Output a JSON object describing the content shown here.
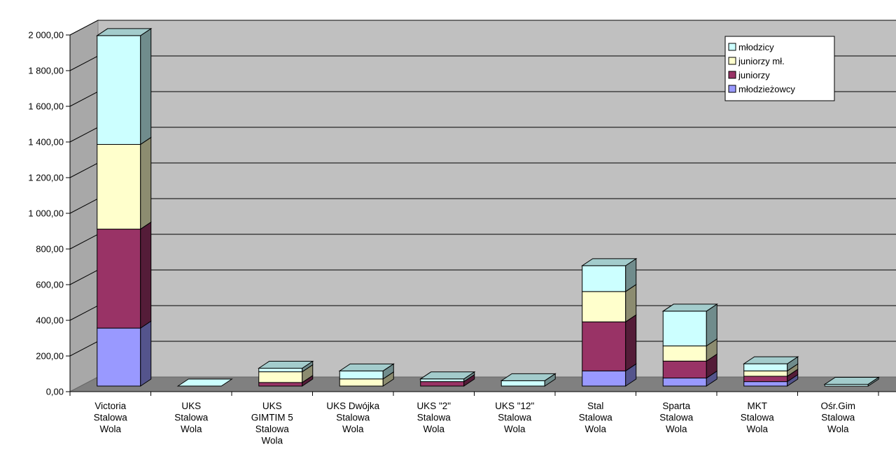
{
  "chart_data": {
    "type": "bar",
    "stacked": true,
    "three_d": true,
    "title": "",
    "xlabel": "",
    "ylabel": "",
    "ylim": [
      0,
      2000
    ],
    "yticks": [
      0,
      200,
      400,
      600,
      800,
      1000,
      1200,
      1400,
      1600,
      1800,
      2000
    ],
    "ytick_labels": [
      "0,00",
      "200,00",
      "400,00",
      "600,00",
      "800,00",
      "1 000,00",
      "1 200,00",
      "1 400,00",
      "1 600,00",
      "1 800,00",
      "2 000,00"
    ],
    "grid": true,
    "legend_position": "top-right",
    "categories": [
      [
        "Victoria",
        "Stalowa",
        "Wola"
      ],
      [
        "UKS",
        "Stalowa",
        "Wola"
      ],
      [
        "UKS",
        "GIMTIM 5",
        "Stalowa",
        "Wola"
      ],
      [
        "UKS Dwójka",
        "Stalowa",
        "Wola"
      ],
      [
        "UKS \"2\"",
        "Stalowa",
        "Wola"
      ],
      [
        "UKS \"12\"",
        "Stalowa",
        "Wola"
      ],
      [
        "Stal",
        "Stalowa",
        "Wola"
      ],
      [
        "Sparta",
        "Stalowa",
        "Wola"
      ],
      [
        "MKT",
        "Stalowa",
        "Wola"
      ],
      [
        "Ośr.Gim",
        "Stalowa",
        "Wola"
      ]
    ],
    "series": [
      {
        "name": "młodzieżowcy",
        "color": "#9999ff",
        "values": [
          325,
          0,
          0,
          0,
          0,
          0,
          85,
          45,
          25,
          0
        ]
      },
      {
        "name": "juniorzy",
        "color": "#993366",
        "values": [
          555,
          0,
          20,
          0,
          25,
          0,
          275,
          95,
          30,
          0
        ]
      },
      {
        "name": "juniorzy mł.",
        "color": "#ffffcc",
        "values": [
          475,
          0,
          60,
          40,
          0,
          0,
          170,
          85,
          30,
          0
        ]
      },
      {
        "name": "młodzicy",
        "color": "#ccffff",
        "values": [
          610,
          0,
          20,
          45,
          15,
          30,
          145,
          195,
          40,
          10
        ]
      }
    ],
    "legend_order": [
      "młodzicy",
      "juniorzy mł.",
      "juniorzy",
      "młodzieżowcy"
    ]
  }
}
